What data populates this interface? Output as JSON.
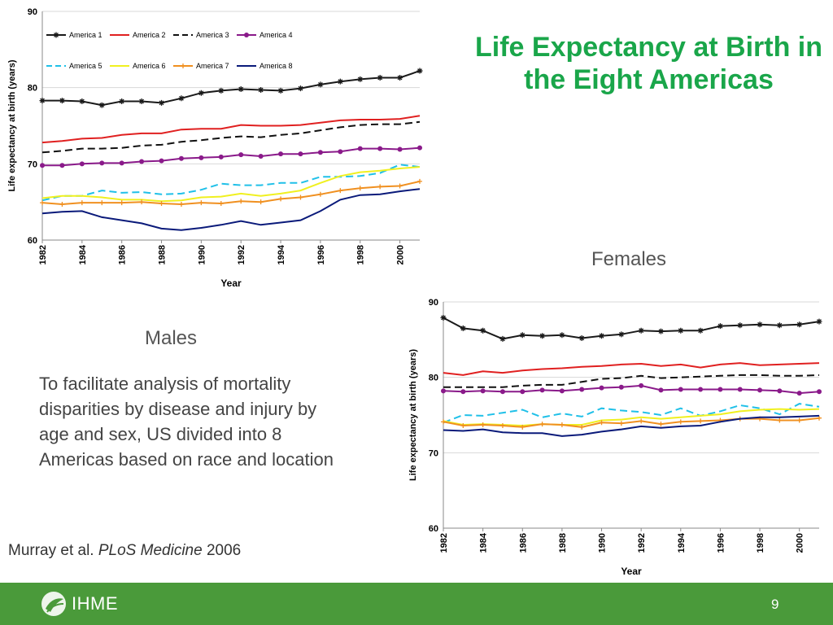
{
  "slide": {
    "title": "Life Expectancy at Birth in the Eight Americas",
    "females_label": "Females",
    "males_label": "Males",
    "description": "To facilitate analysis of mortality disparities by disease and injury by age and sex, US divided into 8 Americas based on race and location",
    "citation_authors": "Murray et al.",
    "citation_journal": "PLoS Medicine",
    "citation_year": "2006",
    "footer_org": "IHME",
    "page_number": "9"
  },
  "chart_data": [
    {
      "type": "line",
      "panel": "males",
      "xlabel": "Year",
      "ylabel": "Life expectancy at birth (years)",
      "x": [
        1982,
        1983,
        1984,
        1985,
        1986,
        1987,
        1988,
        1989,
        1990,
        1991,
        1992,
        1993,
        1994,
        1995,
        1996,
        1997,
        1998,
        1999,
        2000,
        2001
      ],
      "xticks": [
        "1982",
        "1984",
        "1986",
        "1988",
        "1990",
        "1992",
        "1994",
        "1996",
        "1998",
        "2000"
      ],
      "xlim": [
        1982,
        2001
      ],
      "ylim": [
        60,
        90
      ],
      "yticks": [
        "60",
        "70",
        "80",
        "90"
      ],
      "legend_position": "top",
      "series": [
        {
          "name": "America 1",
          "color": "#1a1a1a",
          "dash": "solid",
          "marker": "star",
          "values": [
            78.3,
            78.3,
            78.2,
            77.7,
            78.2,
            78.2,
            78.0,
            78.6,
            79.3,
            79.6,
            79.8,
            79.7,
            79.6,
            79.9,
            80.4,
            80.8,
            81.1,
            81.3,
            81.3,
            82.2
          ]
        },
        {
          "name": "America 2",
          "color": "#e02020",
          "dash": "solid",
          "marker": "none",
          "values": [
            72.8,
            73.0,
            73.3,
            73.4,
            73.8,
            74.0,
            74.0,
            74.5,
            74.6,
            74.6,
            75.1,
            75.0,
            75.0,
            75.1,
            75.4,
            75.7,
            75.8,
            75.8,
            75.9,
            76.3
          ]
        },
        {
          "name": "America 3",
          "color": "#111111",
          "dash": "dashed",
          "marker": "none",
          "values": [
            71.5,
            71.7,
            72.0,
            72.0,
            72.1,
            72.4,
            72.5,
            72.9,
            73.1,
            73.4,
            73.6,
            73.5,
            73.8,
            74.0,
            74.4,
            74.8,
            75.1,
            75.2,
            75.2,
            75.5
          ]
        },
        {
          "name": "America 4",
          "color": "#8a1a8a",
          "dash": "solid",
          "marker": "circle",
          "values": [
            69.8,
            69.8,
            70.0,
            70.1,
            70.1,
            70.3,
            70.4,
            70.7,
            70.8,
            70.9,
            71.2,
            71.0,
            71.3,
            71.3,
            71.5,
            71.6,
            72.0,
            72.0,
            71.9,
            72.1
          ]
        },
        {
          "name": "America 5",
          "color": "#20c0e8",
          "dash": "dashed",
          "marker": "none",
          "values": [
            65.2,
            65.8,
            65.8,
            66.5,
            66.2,
            66.3,
            66.0,
            66.1,
            66.6,
            67.4,
            67.2,
            67.2,
            67.5,
            67.5,
            68.3,
            68.3,
            68.4,
            68.8,
            69.9,
            69.6
          ]
        },
        {
          "name": "America 6",
          "color": "#f0f020",
          "dash": "solid",
          "marker": "none",
          "values": [
            65.5,
            65.8,
            65.8,
            65.6,
            65.3,
            65.3,
            65.1,
            65.2,
            65.6,
            65.7,
            66.1,
            65.8,
            66.1,
            66.5,
            67.5,
            68.4,
            68.9,
            69.1,
            69.4,
            69.6
          ]
        },
        {
          "name": "America 7",
          "color": "#f09020",
          "dash": "solid",
          "marker": "plus",
          "values": [
            64.9,
            64.7,
            64.9,
            64.9,
            64.9,
            65.0,
            64.8,
            64.7,
            64.9,
            64.8,
            65.1,
            65.0,
            65.4,
            65.6,
            66.0,
            66.5,
            66.8,
            67.0,
            67.1,
            67.7
          ]
        },
        {
          "name": "America 8",
          "color": "#0a1a7a",
          "dash": "solid",
          "marker": "none",
          "values": [
            63.5,
            63.7,
            63.8,
            63.0,
            62.6,
            62.2,
            61.5,
            61.3,
            61.6,
            62.0,
            62.5,
            62.0,
            62.3,
            62.6,
            63.8,
            65.3,
            65.9,
            66.0,
            66.4,
            66.7
          ]
        }
      ]
    },
    {
      "type": "line",
      "panel": "females",
      "xlabel": "Year",
      "ylabel": "Life expectancy at birth (years)",
      "x": [
        1982,
        1983,
        1984,
        1985,
        1986,
        1987,
        1988,
        1989,
        1990,
        1991,
        1992,
        1993,
        1994,
        1995,
        1996,
        1997,
        1998,
        1999,
        2000,
        2001
      ],
      "xticks": [
        "1982",
        "1984",
        "1986",
        "1988",
        "1990",
        "1992",
        "1994",
        "1996",
        "1998",
        "2000"
      ],
      "xlim": [
        1982,
        2001
      ],
      "ylim": [
        60,
        90
      ],
      "yticks": [
        "60",
        "70",
        "80",
        "90"
      ],
      "legend_position": "none",
      "series": [
        {
          "name": "America 1",
          "color": "#1a1a1a",
          "dash": "solid",
          "marker": "star",
          "values": [
            87.9,
            86.5,
            86.2,
            85.1,
            85.6,
            85.5,
            85.6,
            85.2,
            85.5,
            85.7,
            86.2,
            86.1,
            86.2,
            86.2,
            86.8,
            86.9,
            87.0,
            86.9,
            87.0,
            87.4
          ]
        },
        {
          "name": "America 2",
          "color": "#e02020",
          "dash": "solid",
          "marker": "none",
          "values": [
            80.6,
            80.3,
            80.8,
            80.6,
            80.9,
            81.1,
            81.2,
            81.4,
            81.5,
            81.7,
            81.8,
            81.5,
            81.7,
            81.3,
            81.7,
            81.9,
            81.6,
            81.7,
            81.8,
            81.9
          ]
        },
        {
          "name": "America 3",
          "color": "#111111",
          "dash": "dashed",
          "marker": "none",
          "values": [
            78.7,
            78.7,
            78.7,
            78.7,
            78.9,
            79.0,
            79.0,
            79.4,
            79.8,
            79.9,
            80.2,
            79.9,
            80.0,
            80.1,
            80.2,
            80.3,
            80.3,
            80.2,
            80.2,
            80.3
          ]
        },
        {
          "name": "America 4",
          "color": "#8a1a8a",
          "dash": "solid",
          "marker": "circle",
          "values": [
            78.2,
            78.1,
            78.2,
            78.1,
            78.1,
            78.3,
            78.2,
            78.4,
            78.6,
            78.7,
            78.9,
            78.3,
            78.4,
            78.4,
            78.4,
            78.4,
            78.3,
            78.2,
            77.9,
            78.1
          ]
        },
        {
          "name": "America 5",
          "color": "#20c0e8",
          "dash": "dashed",
          "marker": "none",
          "values": [
            74.0,
            75.0,
            74.9,
            75.3,
            75.7,
            74.7,
            75.2,
            74.8,
            75.9,
            75.6,
            75.4,
            75.0,
            75.9,
            74.9,
            75.5,
            76.3,
            75.9,
            75.1,
            76.5,
            76.1
          ]
        },
        {
          "name": "America 6",
          "color": "#f0f020",
          "dash": "solid",
          "marker": "none",
          "values": [
            74.2,
            73.7,
            73.8,
            73.7,
            73.6,
            73.8,
            73.7,
            73.7,
            74.3,
            74.4,
            74.7,
            74.5,
            74.7,
            74.9,
            75.1,
            75.5,
            75.7,
            75.8,
            75.7,
            75.8
          ]
        },
        {
          "name": "America 7",
          "color": "#f09020",
          "dash": "solid",
          "marker": "plus",
          "values": [
            74.1,
            73.6,
            73.7,
            73.6,
            73.4,
            73.8,
            73.7,
            73.4,
            74.0,
            73.9,
            74.2,
            73.8,
            74.1,
            74.2,
            74.3,
            74.5,
            74.5,
            74.3,
            74.3,
            74.6
          ]
        },
        {
          "name": "America 8",
          "color": "#0a1a7a",
          "dash": "solid",
          "marker": "none",
          "values": [
            73.0,
            72.9,
            73.1,
            72.7,
            72.6,
            72.6,
            72.2,
            72.4,
            72.8,
            73.1,
            73.5,
            73.3,
            73.5,
            73.6,
            74.1,
            74.5,
            74.7,
            74.7,
            74.8,
            74.9
          ]
        }
      ]
    }
  ]
}
